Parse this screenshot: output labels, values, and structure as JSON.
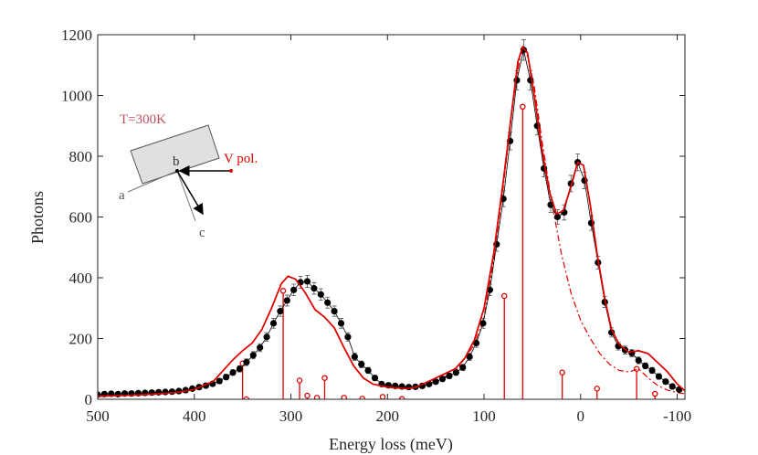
{
  "chart_data": {
    "type": "scatter",
    "xlabel": "Energy loss (meV)",
    "ylabel": "Photons",
    "xlim": [
      500,
      -108
    ],
    "ylim": [
      0,
      1200
    ],
    "xticks": [
      500,
      400,
      300,
      200,
      100,
      0,
      -100
    ],
    "yticks": [
      0,
      200,
      400,
      600,
      800,
      1000,
      1200
    ],
    "annotations": [
      "T=300K",
      "V pol.",
      "a",
      "b",
      "c"
    ],
    "series": [
      {
        "type": "scatter",
        "color": "#000000",
        "x": [
          500,
          493,
          486,
          479,
          472,
          465,
          458,
          451,
          444,
          437,
          430,
          423,
          416,
          409,
          402,
          395,
          388,
          381,
          374,
          367,
          360,
          353,
          346,
          339,
          332,
          325,
          318,
          311,
          304,
          297,
          290,
          283,
          276,
          269,
          262,
          255,
          248,
          241,
          234,
          227,
          220,
          213,
          206,
          199,
          192,
          185,
          178,
          171,
          164,
          157,
          150,
          143,
          136,
          129,
          122,
          115,
          108,
          101,
          94,
          87,
          80,
          73,
          66,
          59,
          52,
          45,
          38,
          31,
          24,
          17,
          10,
          3,
          -4,
          -11,
          -18,
          -25,
          -32,
          -39,
          -46,
          -53,
          -60,
          -67,
          -74,
          -81,
          -88,
          -95,
          -102
        ],
        "values": [
          15,
          17,
          18,
          17,
          19,
          19,
          20,
          21,
          22,
          23,
          24,
          25,
          27,
          30,
          35,
          40,
          45,
          51,
          60,
          73,
          88,
          100,
          122,
          145,
          170,
          205,
          250,
          290,
          325,
          360,
          385,
          388,
          365,
          345,
          318,
          290,
          250,
          205,
          140,
          115,
          95,
          70,
          50,
          46,
          44,
          42,
          40,
          41,
          44,
          50,
          58,
          67,
          77,
          88,
          105,
          140,
          185,
          250,
          360,
          510,
          660,
          850,
          1050,
          1150,
          1050,
          900,
          760,
          640,
          600,
          615,
          710,
          780,
          720,
          580,
          450,
          320,
          220,
          175,
          162,
          152,
          128,
          110,
          95,
          75,
          58,
          42,
          32
        ],
        "errors": [
          4,
          4,
          4,
          4,
          4,
          4,
          4,
          5,
          5,
          5,
          5,
          5,
          5,
          5,
          6,
          6,
          7,
          7,
          8,
          9,
          9,
          10,
          11,
          12,
          13,
          14,
          16,
          17,
          18,
          19,
          20,
          20,
          19,
          19,
          18,
          17,
          16,
          14,
          12,
          11,
          10,
          8,
          7,
          7,
          7,
          6,
          6,
          6,
          7,
          7,
          8,
          8,
          9,
          9,
          10,
          12,
          14,
          16,
          19,
          23,
          26,
          29,
          32,
          34,
          32,
          30,
          28,
          25,
          24,
          25,
          27,
          28,
          27,
          24,
          21,
          18,
          15,
          13,
          13,
          12,
          11,
          10,
          10,
          9,
          8,
          6,
          6
        ]
      },
      {
        "type": "line",
        "color": "#e00000",
        "dash": "solid",
        "x": [
          500,
          480,
          460,
          440,
          420,
          400,
          380,
          360,
          350,
          340,
          330,
          320,
          310,
          303,
          295,
          285,
          275,
          265,
          255,
          245,
          235,
          225,
          215,
          200,
          180,
          170,
          160,
          150,
          140,
          130,
          120,
          110,
          100,
          90,
          80,
          72,
          65,
          60,
          55,
          48,
          40,
          32,
          25,
          18,
          10,
          3,
          -3,
          -10,
          -17,
          -25,
          -32,
          -40,
          -50,
          -60,
          -70,
          -80,
          -90,
          -100,
          -108
        ],
        "values": [
          10,
          12,
          14,
          17,
          22,
          32,
          60,
          130,
          160,
          185,
          230,
          300,
          380,
          405,
          395,
          350,
          295,
          270,
          235,
          170,
          110,
          70,
          50,
          40,
          35,
          40,
          55,
          70,
          85,
          100,
          135,
          195,
          300,
          480,
          720,
          930,
          1110,
          1160,
          1140,
          1000,
          820,
          680,
          610,
          620,
          700,
          780,
          770,
          640,
          480,
          330,
          230,
          180,
          155,
          160,
          150,
          120,
          90,
          50,
          28
        ]
      },
      {
        "type": "line",
        "color": "#e00000",
        "dash": "dash-dot",
        "x": [
          200,
          170,
          150,
          130,
          110,
          100,
          90,
          80,
          70,
          62,
          55,
          48,
          40,
          30,
          20,
          10,
          0,
          -10,
          -20,
          -30,
          -40,
          -50,
          -55,
          -60,
          -70,
          -80,
          -90,
          -100,
          -108
        ],
        "values": [
          40,
          38,
          60,
          90,
          180,
          270,
          460,
          700,
          980,
          1140,
          1130,
          1030,
          850,
          650,
          480,
          350,
          260,
          200,
          150,
          115,
          95,
          90,
          95,
          100,
          70,
          45,
          30,
          22,
          18
        ]
      },
      {
        "type": "stem",
        "color": "#e00000",
        "x": [
          350,
          346,
          308,
          291,
          283,
          273,
          265,
          245,
          226,
          205,
          185,
          79,
          60,
          19,
          -17,
          -58,
          -77
        ],
        "values": [
          118,
          0,
          357,
          62,
          12,
          5,
          70,
          5,
          2,
          8,
          1,
          340,
          963,
          88,
          35,
          100,
          18
        ]
      }
    ]
  }
}
